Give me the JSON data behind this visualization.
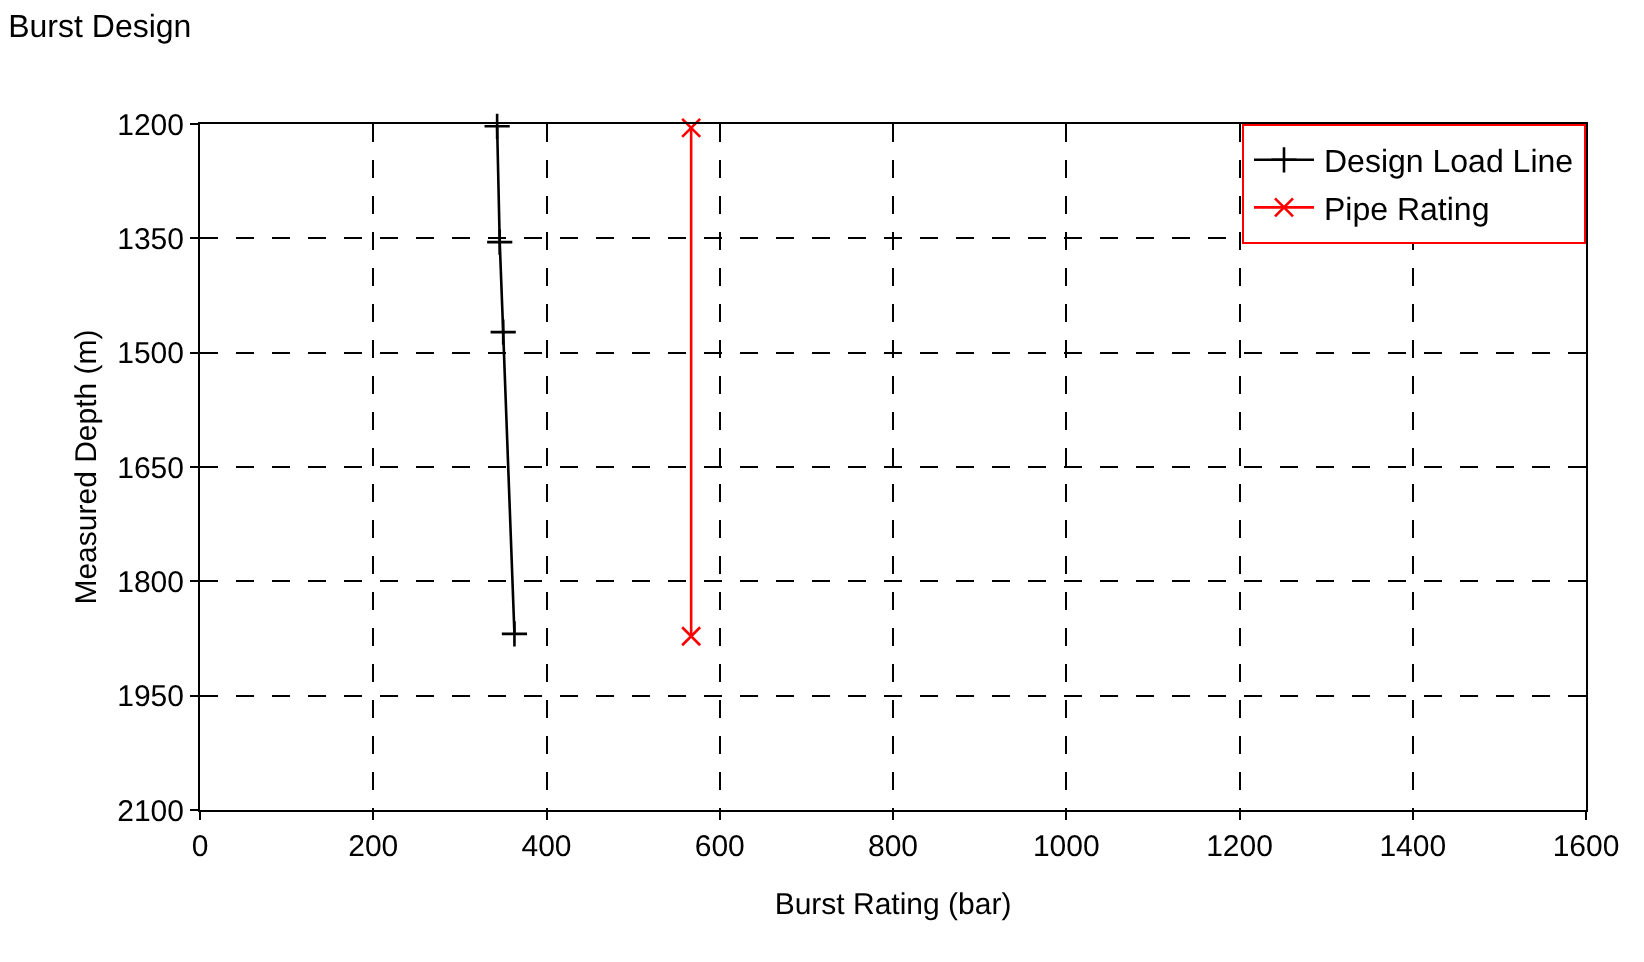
{
  "chart_data": {
    "type": "line",
    "title": "Burst Design",
    "xlabel": "Burst Rating (bar)",
    "ylabel": "Measured Depth (m)",
    "xlim": [
      0,
      1600
    ],
    "xticks": [
      0,
      200,
      400,
      600,
      800,
      1000,
      1200,
      1400,
      1600
    ],
    "ylim": [
      2100,
      1200
    ],
    "yticks": [
      1200,
      1350,
      1500,
      1650,
      1800,
      1950,
      2100
    ],
    "grid": true,
    "legend": "top right",
    "line_style": "solid",
    "series": [
      {
        "name": "Design Load Line",
        "color": "#000000",
        "marker": "cross",
        "x": [
          343,
          346,
          350,
          363
        ],
        "values": [
          1203,
          1355,
          1473,
          1869
        ]
      },
      {
        "name": "Pipe Rating",
        "color": "#ff0000",
        "marker": "x",
        "x": [
          567,
          567
        ],
        "values": [
          1205,
          1872
        ]
      }
    ]
  }
}
